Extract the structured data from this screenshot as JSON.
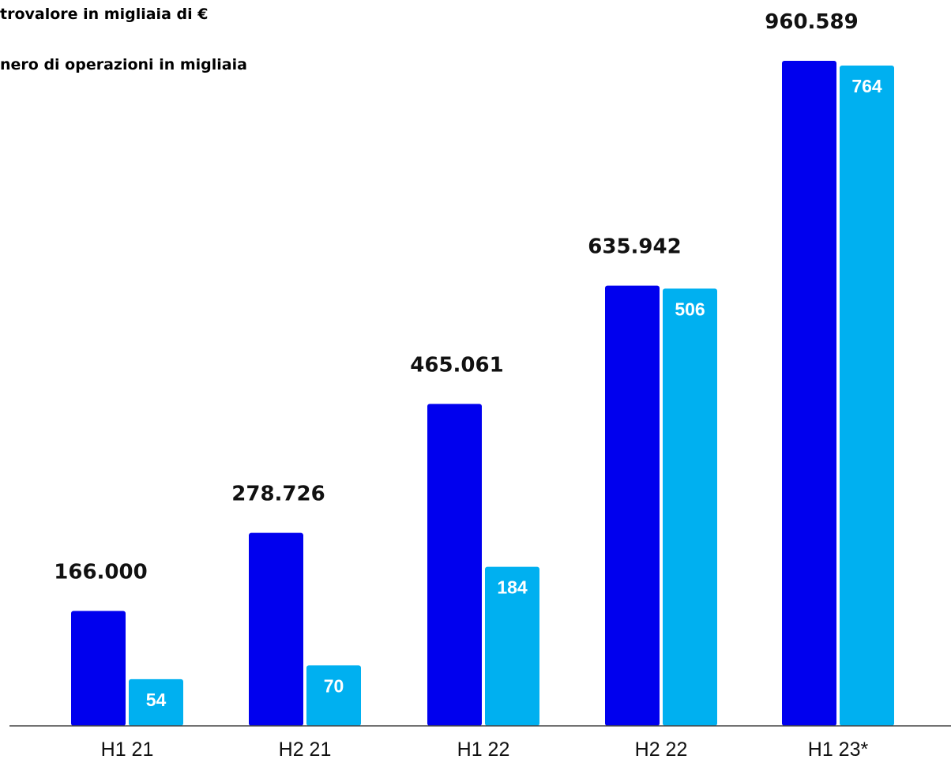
{
  "legend": {
    "line1": "trovalore in migliaia di €",
    "line2": "nero di operazioni in migliaia"
  },
  "colors": {
    "value_bar": "#0000ee",
    "count_bar": "#00b0f0"
  },
  "chart_data": {
    "type": "bar",
    "categories": [
      "H1 21",
      "H2 21",
      "H1 22",
      "H2 22",
      "H1 23*"
    ],
    "series": [
      {
        "values": [
          166000,
          278726,
          465061,
          635942,
          960589
        ],
        "labels": [
          "166.000",
          "278.726",
          "465.061",
          "635.942",
          "960.589"
        ]
      },
      {
        "values": [
          54,
          70,
          184,
          506,
          764
        ],
        "labels": [
          "54",
          "70",
          "184",
          "506",
          "764"
        ]
      }
    ],
    "legend_position": "top-left",
    "grid": false
  }
}
